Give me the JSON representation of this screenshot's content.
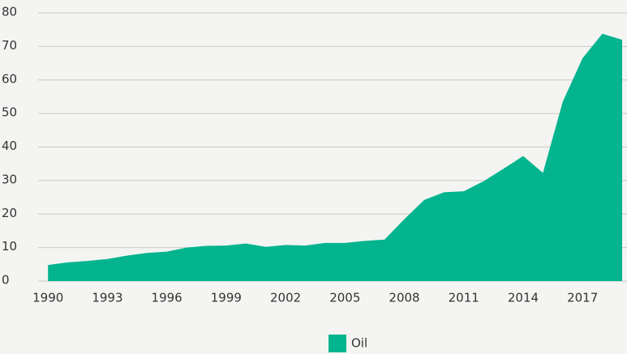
{
  "chart_data": {
    "type": "area",
    "x": [
      1990,
      1991,
      1992,
      1993,
      1994,
      1995,
      1996,
      1997,
      1998,
      1999,
      2000,
      2001,
      2002,
      2003,
      2004,
      2005,
      2006,
      2007,
      2008,
      2009,
      2010,
      2011,
      2012,
      2013,
      2014,
      2015,
      2016,
      2017,
      2018,
      2019
    ],
    "series": [
      {
        "name": "Oil",
        "color": "#03b48f",
        "values": [
          4.8,
          5.6,
          6.0,
          6.6,
          7.6,
          8.4,
          8.8,
          10.0,
          10.5,
          10.6,
          11.2,
          10.2,
          10.8,
          10.6,
          11.4,
          11.4,
          12.0,
          12.4,
          18.5,
          24.2,
          26.5,
          26.8,
          29.8,
          33.5,
          37.3,
          32.3,
          53.5,
          66.5,
          73.8,
          72.0
        ]
      }
    ],
    "xlim": [
      1989.5,
      2019
    ],
    "xticks": [
      1990,
      1993,
      1996,
      1999,
      2002,
      2005,
      2008,
      2011,
      2014,
      2017
    ],
    "ylim": [
      0,
      80
    ],
    "yticks": [
      0,
      10,
      20,
      30,
      40,
      50,
      60,
      70,
      80
    ],
    "grid": true
  }
}
